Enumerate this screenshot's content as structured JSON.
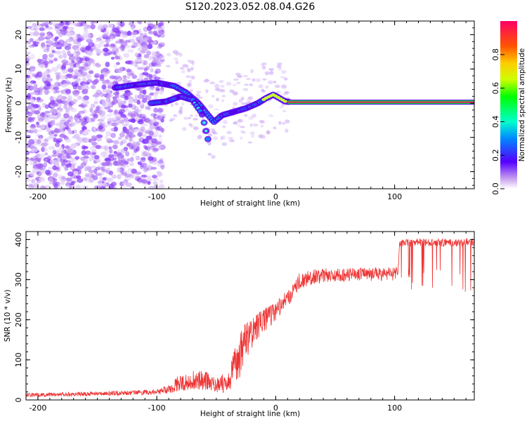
{
  "title": "S120.2023.052.08.04.G26",
  "chart_data": [
    {
      "type": "heatmap",
      "xlabel": "Height of straight line (km)",
      "ylabel": "Frequency (Hz)",
      "xlim": [
        -210,
        167
      ],
      "ylim": [
        -25,
        24
      ],
      "xticks": [
        -200,
        -100,
        0,
        100
      ],
      "yticks": [
        -20,
        -10,
        0,
        10,
        20
      ],
      "tone_track": [
        {
          "x": -135,
          "y": 4.5
        },
        {
          "x": -115,
          "y": 5.5
        },
        {
          "x": -100,
          "y": 6
        },
        {
          "x": -85,
          "y": 5
        },
        {
          "x": -75,
          "y": 3
        },
        {
          "x": -65,
          "y": 0
        },
        {
          "x": -58,
          "y": -3
        },
        {
          "x": -52,
          "y": -5.5
        },
        {
          "x": -45,
          "y": -3.5
        },
        {
          "x": -35,
          "y": -2.5
        },
        {
          "x": -25,
          "y": -1.5
        },
        {
          "x": -15,
          "y": 0
        },
        {
          "x": -8,
          "y": 1.5
        },
        {
          "x": -2,
          "y": 2.5
        },
        {
          "x": 3,
          "y": 1.5
        },
        {
          "x": 8,
          "y": 0.5
        },
        {
          "x": 15,
          "y": 0.3
        },
        {
          "x": 167,
          "y": 0.3
        }
      ],
      "branch_track": [
        {
          "x": -105,
          "y": 0
        },
        {
          "x": -92,
          "y": 0.5
        },
        {
          "x": -80,
          "y": 2
        },
        {
          "x": -70,
          "y": 1
        },
        {
          "x": -62,
          "y": -3
        },
        {
          "x": -57,
          "y": -10.5
        }
      ],
      "colorbar": {
        "label": "Normalized spectral amplitude",
        "range": [
          0,
          1
        ],
        "ticks": [
          "0.0",
          "0.2",
          "0.4",
          "0.6",
          "0.8"
        ]
      }
    },
    {
      "type": "line",
      "xlabel": "Height of straight line (km)",
      "ylabel": "SNR (10 * v/v)",
      "xlim": [
        -210,
        167
      ],
      "ylim": [
        0,
        420
      ],
      "xticks": [
        -200,
        -100,
        0,
        100
      ],
      "yticks": [
        0,
        100,
        200,
        300,
        400
      ],
      "color": "#ee3333",
      "series": [
        {
          "x": [
            -210,
            -180,
            -150,
            -120,
            -100,
            -90,
            -80,
            -70,
            -60,
            -50,
            -40,
            -35,
            -30,
            -25,
            -20,
            -15,
            -10,
            -5,
            0,
            5,
            10,
            15,
            20,
            25,
            30,
            40,
            50,
            60,
            70,
            80,
            90,
            100,
            103,
            104,
            110,
            130,
            150,
            167
          ],
          "y": [
            12,
            14,
            16,
            18,
            20,
            28,
            45,
            50,
            50,
            40,
            45,
            80,
            110,
            150,
            170,
            185,
            200,
            210,
            220,
            240,
            255,
            275,
            295,
            300,
            305,
            310,
            312,
            312,
            313,
            312,
            314,
            315,
            315,
            390,
            392,
            393,
            392,
            395
          ],
          "noise_amplitude": [
            10,
            10,
            12,
            12,
            14,
            25,
            45,
            50,
            50,
            45,
            55,
            90,
            110,
            100,
            80,
            70,
            60,
            55,
            50,
            45,
            45,
            45,
            45,
            40,
            40,
            35,
            35,
            35,
            35,
            35,
            35,
            35,
            35,
            20,
            20,
            20,
            20,
            20
          ]
        }
      ]
    }
  ]
}
